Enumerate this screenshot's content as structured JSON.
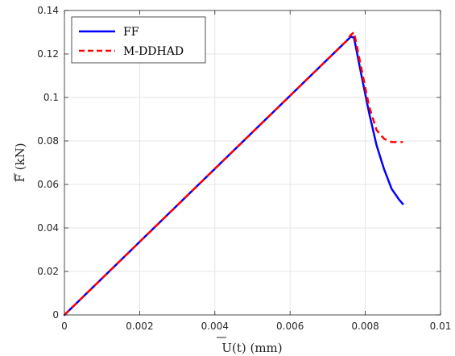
{
  "chart_data": {
    "type": "line",
    "title": "",
    "xlabel": "U(t) (mm)",
    "ylabel": "F (kN)",
    "xlim": [
      0,
      0.01
    ],
    "ylim": [
      0,
      0.14
    ],
    "xticks": [
      0,
      0.002,
      0.004,
      0.006,
      0.008,
      0.01
    ],
    "xtick_labels": [
      "0",
      "0.002",
      "0.004",
      "0.006",
      "0.008",
      "0.01"
    ],
    "yticks": [
      0,
      0.02,
      0.04,
      0.06,
      0.08,
      0.1,
      0.12,
      0.14
    ],
    "ytick_labels": [
      "0",
      "0.02",
      "0.04",
      "0.06",
      "0.08",
      "0.1",
      "0.12",
      "0.14"
    ],
    "grid": true,
    "legend_position": "top-left",
    "series": [
      {
        "name": "FF",
        "color": "#0000ff",
        "style": "solid",
        "x": [
          0,
          0.002,
          0.004,
          0.006,
          0.0075,
          0.00762,
          0.0077,
          0.0079,
          0.0081,
          0.0083,
          0.0085,
          0.0087,
          0.0089,
          0.009
        ],
        "y": [
          0,
          0.0336,
          0.0672,
          0.1008,
          0.126,
          0.128,
          0.1275,
          0.11,
          0.093,
          0.078,
          0.067,
          0.058,
          0.053,
          0.051
        ]
      },
      {
        "name": "M-DDHAD",
        "color": "#ff0000",
        "style": "dashed",
        "x": [
          0,
          0.002,
          0.004,
          0.006,
          0.0075,
          0.0076,
          0.0077,
          0.0079,
          0.0081,
          0.0083,
          0.0085,
          0.0087,
          0.0089,
          0.009
        ],
        "y": [
          0,
          0.0336,
          0.0672,
          0.1008,
          0.126,
          0.1285,
          0.13,
          0.113,
          0.096,
          0.085,
          0.081,
          0.0795,
          0.0795,
          0.0795
        ]
      }
    ]
  }
}
